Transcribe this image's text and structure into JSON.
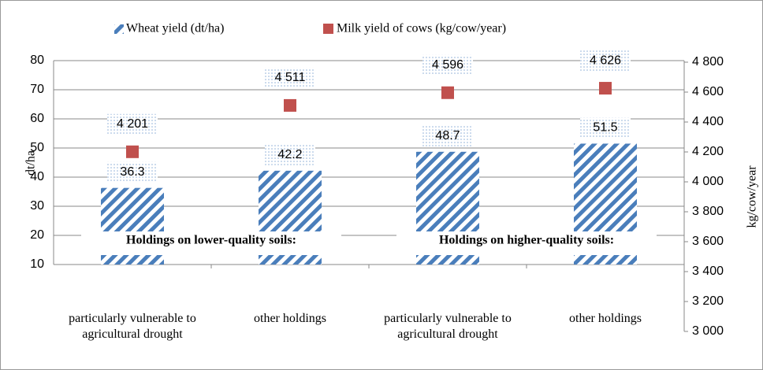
{
  "chart_data": {
    "type": "bar",
    "categories": [
      "particularly vulnerable to agricultural drought",
      "other holdings",
      "particularly vulnerable to agricultural drought",
      "other holdings"
    ],
    "series": [
      {
        "name": "Wheat yield (dt/ha)",
        "color": "#4a7ebb",
        "values": [
          36.3,
          42.2,
          48.7,
          51.5
        ]
      },
      {
        "name": "Milk yield of cows (kg/cow/year)",
        "color": "#c0504d",
        "axis": "y2",
        "values": [
          4201,
          4511,
          4596,
          4626
        ],
        "value_labels": [
          "4 201",
          "4 511",
          "4 596",
          "4 626"
        ]
      }
    ],
    "ylabel": "dt/ha",
    "y2label": "kg/cow/year",
    "ylim": [
      10,
      80
    ],
    "yticks": [
      10,
      20,
      30,
      40,
      50,
      60,
      70,
      80
    ],
    "y2lim": [
      3000,
      4900
    ],
    "y2ticks": [
      {
        "value": 3000,
        "label": "3 000"
      },
      {
        "value": 3200,
        "label": "3 200"
      },
      {
        "value": 3400,
        "label": "3 400"
      },
      {
        "value": 3600,
        "label": "3 600"
      },
      {
        "value": 3800,
        "label": "3 800"
      },
      {
        "value": 4000,
        "label": "4 000"
      },
      {
        "value": 4200,
        "label": "4 200"
      },
      {
        "value": 4400,
        "label": "4 400"
      },
      {
        "value": 4600,
        "label": "4 600"
      },
      {
        "value": 4800,
        "label": "4 800"
      }
    ],
    "annotations": [
      "Holdings on lower-quality soils:",
      "Holdings on higher-quality soils:"
    ],
    "grid": true
  }
}
